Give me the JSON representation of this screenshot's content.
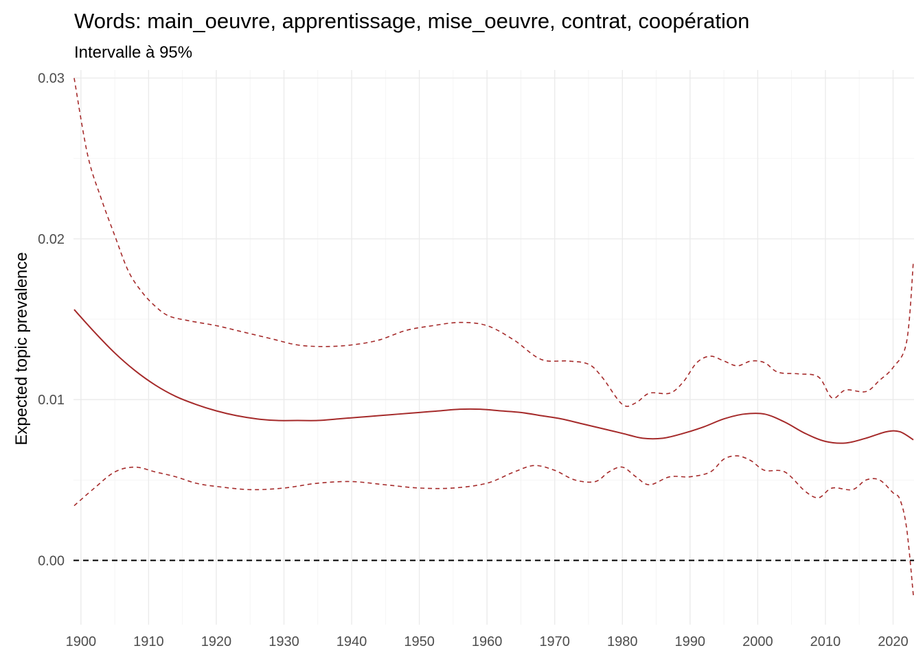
{
  "chart_data": {
    "type": "line",
    "title": "Words: main_oeuvre, apprentissage, mise_oeuvre, contrat, coopération",
    "subtitle": "Intervalle à 95%",
    "xlabel": "",
    "ylabel": "Expected topic prevalence",
    "xlim": [
      1898.9,
      2023.1
    ],
    "ylim": [
      -0.004,
      0.0305
    ],
    "x_ticks": [
      1900,
      1910,
      1920,
      1930,
      1940,
      1950,
      1960,
      1970,
      1980,
      1990,
      2000,
      2010,
      2020
    ],
    "x_tick_labels": [
      "1900",
      "1910",
      "1920",
      "1930",
      "1940",
      "1950",
      "1960",
      "1970",
      "1980",
      "1990",
      "2000",
      "2010",
      "2020"
    ],
    "y_ticks": [
      0.0,
      0.01,
      0.02,
      0.03
    ],
    "y_tick_labels": [
      "0.00",
      "0.01",
      "0.02",
      "0.03"
    ],
    "grid": true,
    "reference_line": {
      "y": 0,
      "style": "dashed",
      "color": "#000000"
    },
    "series": [
      {
        "role": "estimate",
        "style": "solid",
        "color": "#a52a2a",
        "x": [
          1899,
          1902,
          1905,
          1908,
          1911,
          1914,
          1917,
          1920,
          1923,
          1926,
          1929,
          1932,
          1935,
          1938,
          1941,
          1944,
          1947,
          1950,
          1953,
          1956,
          1959,
          1962,
          1965,
          1968,
          1971,
          1974,
          1977,
          1980,
          1983,
          1986,
          1989,
          1992,
          1995,
          1998,
          2001,
          2004,
          2007,
          2010,
          2013,
          2016,
          2019,
          2021,
          2023
        ],
        "values": [
          0.0156,
          0.0142,
          0.0129,
          0.0118,
          0.0109,
          0.0102,
          0.0097,
          0.0093,
          0.009,
          0.0088,
          0.0087,
          0.0087,
          0.0087,
          0.0088,
          0.0089,
          0.009,
          0.0091,
          0.0092,
          0.0093,
          0.0094,
          0.0094,
          0.0093,
          0.0092,
          0.009,
          0.0088,
          0.0085,
          0.0082,
          0.0079,
          0.0076,
          0.0076,
          0.0079,
          0.0083,
          0.0088,
          0.0091,
          0.0091,
          0.0086,
          0.0079,
          0.0074,
          0.0073,
          0.0076,
          0.008,
          0.008,
          0.0075
        ]
      },
      {
        "role": "upper",
        "style": "dashed",
        "color": "#a52a2a",
        "x": [
          1899,
          1901,
          1903,
          1905,
          1907,
          1909,
          1911,
          1913,
          1916,
          1920,
          1924,
          1928,
          1932,
          1936,
          1940,
          1944,
          1948,
          1952,
          1956,
          1960,
          1964,
          1968,
          1972,
          1975,
          1977,
          1980,
          1982,
          1984,
          1987,
          1989,
          1991,
          1993,
          1995,
          1997,
          1999,
          2001,
          2003,
          2006,
          2009,
          2011,
          2013,
          2016,
          2018,
          2020,
          2022,
          2023
        ],
        "values": [
          0.03,
          0.0252,
          0.0225,
          0.0202,
          0.018,
          0.0167,
          0.0158,
          0.0152,
          0.0149,
          0.0146,
          0.0142,
          0.0138,
          0.0134,
          0.0133,
          0.0134,
          0.0137,
          0.0143,
          0.0146,
          0.0148,
          0.0146,
          0.0137,
          0.0125,
          0.0124,
          0.0122,
          0.0114,
          0.0097,
          0.0098,
          0.0104,
          0.0104,
          0.0111,
          0.0123,
          0.0127,
          0.0124,
          0.0121,
          0.0124,
          0.0123,
          0.0117,
          0.0116,
          0.0114,
          0.0101,
          0.0106,
          0.0105,
          0.0112,
          0.012,
          0.0136,
          0.0186
        ]
      },
      {
        "role": "lower",
        "style": "dashed",
        "color": "#a52a2a",
        "x": [
          1899,
          1902,
          1905,
          1908,
          1911,
          1914,
          1917,
          1920,
          1925,
          1930,
          1935,
          1940,
          1945,
          1950,
          1955,
          1960,
          1964,
          1967,
          1970,
          1973,
          1976,
          1978,
          1980,
          1982,
          1984,
          1987,
          1990,
          1993,
          1995,
          1997,
          1999,
          2001,
          2004,
          2007,
          2009,
          2011,
          2014,
          2016,
          2018,
          2020,
          2021,
          2022,
          2023
        ],
        "values": [
          0.0034,
          0.0045,
          0.0055,
          0.0058,
          0.0055,
          0.0052,
          0.0048,
          0.0046,
          0.0044,
          0.0045,
          0.0048,
          0.0049,
          0.0047,
          0.0045,
          0.0045,
          0.0048,
          0.0055,
          0.0059,
          0.0056,
          0.005,
          0.0049,
          0.0055,
          0.0058,
          0.0052,
          0.0047,
          0.0052,
          0.0052,
          0.0055,
          0.0063,
          0.0065,
          0.0062,
          0.0056,
          0.0055,
          0.0043,
          0.0039,
          0.0045,
          0.0044,
          0.005,
          0.005,
          0.0042,
          0.0038,
          0.002,
          -0.0022
        ]
      }
    ]
  }
}
